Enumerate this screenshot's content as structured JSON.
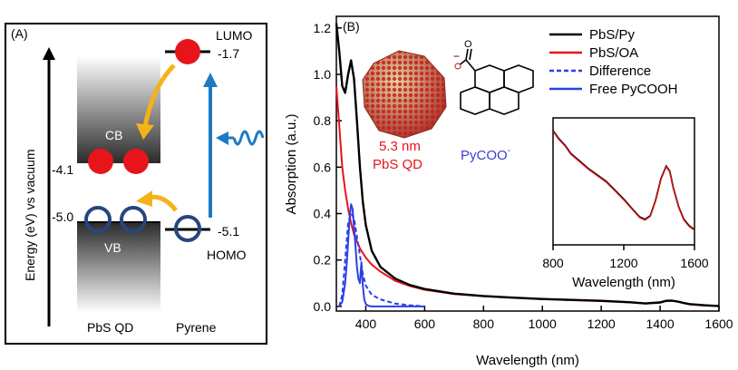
{
  "panel_a": {
    "label": "(A)",
    "y_axis_label": "Energy (eV) vs vacuum",
    "cb_label": "CB",
    "vb_label": "VB",
    "cb_energy": "-4.1",
    "vb_energy": "-5.0",
    "lumo_label": "LUMO",
    "lumo_energy": "-1.7",
    "homo_label": "HOMO",
    "homo_energy": "-5.1",
    "left_caption": "PbS QD",
    "right_caption": "Pyrene",
    "colors": {
      "electron": "#e8141b",
      "hole": "#27457f",
      "transfer_arrow": "#f5b21b",
      "excitation_arrow": "#1f7ac2"
    }
  },
  "panel_b": {
    "label": "(B)",
    "qd_size": "5.3 nm",
    "qd_name": "PbS QD",
    "ligand_name": "PyCOO",
    "ligand_charge": "-",
    "structure_charge": "−",
    "structure_o_label": "O",
    "inset": {
      "xlabel": "Wavelength (nm)",
      "ticks": [
        "800",
        "1200",
        "1600"
      ]
    }
  },
  "chart_data": {
    "type": "line",
    "xlabel": "Wavelength (nm)",
    "ylabel": "Absorption (a.u.)",
    "xlim": [
      300,
      1600
    ],
    "ylim": [
      -0.02,
      1.25
    ],
    "xticks": [
      "400",
      "600",
      "800",
      "1000",
      "1200",
      "1400",
      "1600"
    ],
    "yticks": [
      "0.0",
      "0.2",
      "0.4",
      "0.6",
      "0.8",
      "1.0",
      "1.2"
    ],
    "legend_position": "top-right",
    "series": [
      {
        "name": "PbS/Py",
        "color": "#000000",
        "style": "solid",
        "x": [
          300,
          310,
          320,
          330,
          340,
          350,
          360,
          370,
          380,
          390,
          400,
          420,
          450,
          500,
          550,
          600,
          700,
          800,
          900,
          1000,
          1100,
          1200,
          1300,
          1350,
          1400,
          1420,
          1440,
          1460,
          1480,
          1500,
          1550,
          1600
        ],
        "y": [
          1.22,
          1.1,
          0.95,
          0.92,
          1.0,
          1.06,
          0.98,
          0.8,
          0.6,
          0.45,
          0.35,
          0.24,
          0.17,
          0.12,
          0.092,
          0.075,
          0.055,
          0.045,
          0.038,
          0.032,
          0.028,
          0.024,
          0.018,
          0.013,
          0.017,
          0.024,
          0.025,
          0.021,
          0.015,
          0.01,
          0.005,
          0.002
        ]
      },
      {
        "name": "PbS/OA",
        "color": "#e8141b",
        "style": "solid",
        "x": [
          300,
          310,
          320,
          330,
          340,
          350,
          360,
          370,
          380,
          390,
          400,
          420,
          450,
          500,
          550,
          600,
          700,
          800,
          900,
          1000,
          1100,
          1200,
          1300,
          1350,
          1400,
          1420,
          1440,
          1460,
          1480,
          1500,
          1550,
          1600
        ],
        "y": [
          0.95,
          0.78,
          0.6,
          0.5,
          0.42,
          0.36,
          0.31,
          0.28,
          0.25,
          0.23,
          0.21,
          0.18,
          0.15,
          0.11,
          0.088,
          0.072,
          0.053,
          0.044,
          0.037,
          0.031,
          0.027,
          0.023,
          0.017,
          0.012,
          0.016,
          0.023,
          0.024,
          0.02,
          0.014,
          0.009,
          0.004,
          0.001
        ]
      },
      {
        "name": "Difference",
        "color": "#2c3fe8",
        "style": "dashed",
        "x": [
          310,
          320,
          330,
          340,
          350,
          360,
          370,
          380,
          390,
          400,
          420,
          450,
          500,
          550,
          600
        ],
        "y": [
          0.0,
          0.05,
          0.2,
          0.36,
          0.4,
          0.38,
          0.3,
          0.22,
          0.14,
          0.09,
          0.05,
          0.03,
          0.012,
          0.005,
          0.0
        ]
      },
      {
        "name": "Free PyCOOH",
        "color": "#2c3fe8",
        "style": "solid",
        "x": [
          310,
          320,
          330,
          335,
          340,
          345,
          350,
          355,
          360,
          365,
          370,
          375,
          380,
          385,
          390,
          395,
          400,
          410,
          420,
          450,
          500,
          550,
          600
        ],
        "y": [
          0.0,
          0.02,
          0.1,
          0.18,
          0.28,
          0.38,
          0.44,
          0.42,
          0.34,
          0.26,
          0.17,
          0.12,
          0.1,
          0.19,
          0.09,
          0.03,
          0.01,
          0.002,
          0.0,
          0.0,
          0.0,
          0.0,
          0.0
        ]
      }
    ]
  }
}
